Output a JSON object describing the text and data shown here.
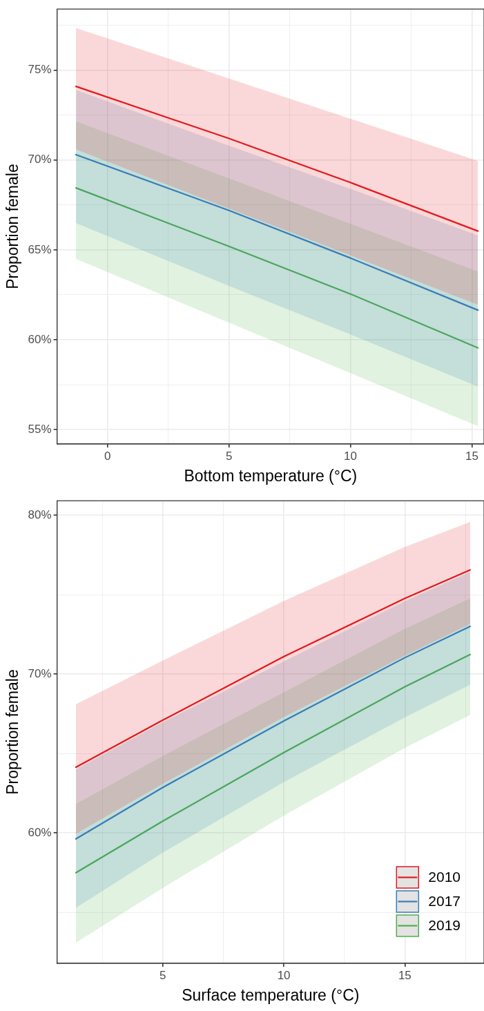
{
  "chart_data": [
    {
      "type": "line",
      "xlabel": "Bottom temperature (°C)",
      "ylabel": "Proportion female",
      "legend": false,
      "grid": true,
      "marker": "none",
      "line_style": "solid",
      "xlim": [
        -2.08,
        15.5
      ],
      "ylim": [
        54.2,
        78.4
      ],
      "xticks": [
        0,
        {
          "value": 2.5,
          "label": null
        },
        5,
        {
          "value": 7.5,
          "label": null
        },
        10,
        {
          "value": 12.5,
          "label": null
        },
        15
      ],
      "yticks": [
        {
          "value": 55,
          "label": "55%"
        },
        {
          "value": 57.5,
          "label": null
        },
        {
          "value": 60,
          "label": "60%"
        },
        {
          "value": 62.5,
          "label": null
        },
        {
          "value": 65,
          "label": "65%"
        },
        {
          "value": 67.5,
          "label": null
        },
        {
          "value": 70,
          "label": "70%"
        },
        {
          "value": 72.5,
          "label": null
        },
        {
          "value": 75,
          "label": "75%"
        },
        {
          "value": 77.5,
          "label": null
        }
      ],
      "x": [
        -1.3,
        5,
        10,
        15.25
      ],
      "series": [
        {
          "color": "#e41a1c",
          "values": [
            74.1,
            71.2,
            68.75,
            66.05
          ],
          "lower": [
            70.6,
            67.3,
            64.7,
            61.95
          ],
          "upper": [
            77.35,
            74.54,
            72.3,
            69.95
          ]
        },
        {
          "color": "#377eb8",
          "values": [
            70.3,
            67.2,
            64.55,
            61.65
          ],
          "lower": [
            66.5,
            63.0,
            60.3,
            57.4
          ],
          "upper": [
            73.9,
            70.8,
            68.4,
            65.8
          ]
        },
        {
          "color": "#4daf4a",
          "values": [
            68.45,
            65.2,
            62.55,
            59.55
          ],
          "lower": [
            64.5,
            60.95,
            58.15,
            55.2
          ],
          "upper": [
            72.15,
            68.98,
            66.45,
            63.8
          ]
        }
      ]
    },
    {
      "type": "line",
      "xlabel": "Surface temperature (°C)",
      "ylabel": "Proportion female",
      "legend": "bottom right",
      "grid": true,
      "marker": "none",
      "line_style": "solid",
      "xlim": [
        0.63,
        18.27
      ],
      "ylim": [
        51.8,
        80.9
      ],
      "xticks": [
        {
          "value": 2.5,
          "label": null
        },
        5,
        {
          "value": 7.5,
          "label": null
        },
        10,
        {
          "value": 12.5,
          "label": null
        },
        15,
        {
          "value": 17.5,
          "label": null
        }
      ],
      "yticks": [
        {
          "value": 55,
          "label": null
        },
        {
          "value": 60,
          "label": "60%"
        },
        {
          "value": 65,
          "label": null
        },
        {
          "value": 70,
          "label": "70%"
        },
        {
          "value": 75,
          "label": null
        },
        {
          "value": 80,
          "label": "80%"
        }
      ],
      "x": [
        1.41,
        5,
        10,
        15,
        17.7
      ],
      "series": [
        {
          "name": "2010",
          "color": "#e41a1c",
          "values": [
            64.14,
            67.1,
            71.1,
            74.76,
            76.55
          ],
          "lower": [
            59.96,
            63.1,
            67.3,
            71.16,
            73.15
          ],
          "upper": [
            68.1,
            70.85,
            74.6,
            78.0,
            79.57
          ]
        },
        {
          "name": "2017",
          "color": "#377eb8",
          "values": [
            59.63,
            62.87,
            67.05,
            71.03,
            73.0
          ],
          "lower": [
            55.3,
            58.77,
            63.2,
            67.28,
            69.33
          ],
          "upper": [
            64.0,
            66.97,
            70.8,
            74.58,
            76.42
          ]
        },
        {
          "name": "2019",
          "color": "#4daf4a",
          "values": [
            57.5,
            60.75,
            65.06,
            69.2,
            71.23
          ],
          "lower": [
            53.1,
            56.55,
            61.1,
            65.35,
            67.43
          ],
          "upper": [
            61.83,
            64.85,
            68.85,
            72.85,
            74.76
          ]
        }
      ]
    }
  ]
}
